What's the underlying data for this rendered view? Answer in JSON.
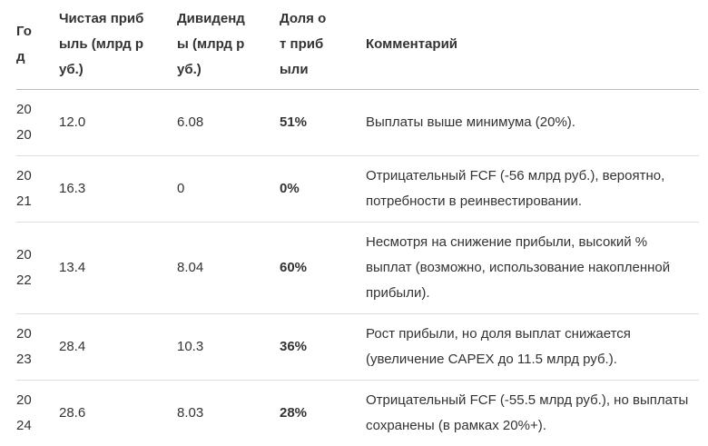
{
  "table": {
    "headers": [
      "Год",
      "Чистая прибыль (млрд руб.)",
      "Дивиденды (млрд руб.)",
      "Доля от прибыли",
      "Комментарий"
    ],
    "rows": [
      [
        "2020",
        "12.0",
        "6.08",
        "51%",
        "Выплаты выше минимума (20%)."
      ],
      [
        "2021",
        "16.3",
        "0",
        "0%",
        "Отрицательный FCF (-56 млрд руб.), вероятно, потребности в реинвестировании."
      ],
      [
        "2022",
        "13.4",
        "8.04",
        "60%",
        "Несмотря на снижение прибыли, высокий % выплат (возможно, использование накопленной прибыли)."
      ],
      [
        "2023",
        "28.4",
        "10.3",
        "36%",
        "Рост прибыли, но доля выплат снижается (увеличение CAPEX до 11.5 млрд руб.)."
      ],
      [
        "2024",
        "28.6",
        "8.03",
        "28%",
        "Отрицательный FCF (-55.5 млрд руб.), но выплаты сохранены (в рамках 20%+)."
      ]
    ]
  }
}
